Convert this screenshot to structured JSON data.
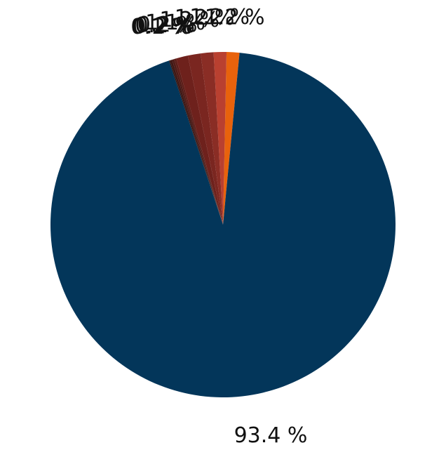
{
  "chart_data": {
    "type": "pie",
    "start_angle_deg": 0,
    "direction": "counterclockwise",
    "slices": [
      {
        "label": "1.2 %",
        "value": 1.2,
        "color": "#e8620c"
      },
      {
        "label": "1.2 %",
        "value": 1.2,
        "color": "#b94030"
      },
      {
        "label": "1.2 %",
        "value": 1.2,
        "color": "#8a2d25"
      },
      {
        "label": "1.2 %",
        "value": 1.2,
        "color": "#7a2620"
      },
      {
        "label": "1.1 %",
        "value": 1.1,
        "color": "#6e211c"
      },
      {
        "label": "0.2 %",
        "value": 0.2,
        "color": "#5c1d18"
      },
      {
        "label": "0.2 %",
        "value": 0.2,
        "color": "#4e1a16"
      },
      {
        "label": "0.2 %",
        "value": 0.2,
        "color": "#3f1714"
      },
      {
        "label": "0.1 %",
        "value": 0.1,
        "color": "#2e1412"
      },
      {
        "label": "93.4 %",
        "value": 93.4,
        "color": "#03365a"
      }
    ]
  }
}
